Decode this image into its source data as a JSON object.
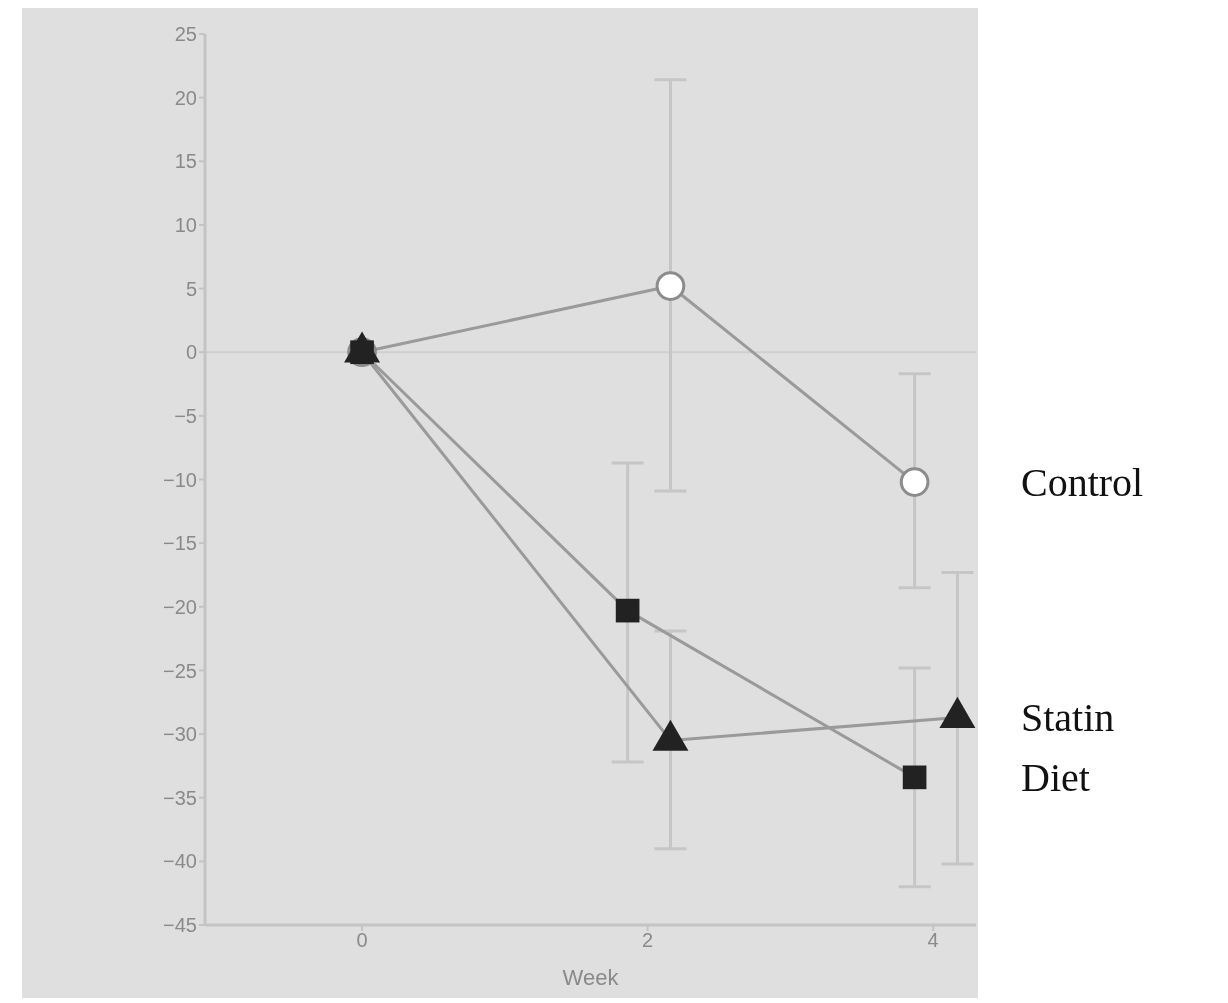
{
  "chart_data": {
    "type": "line",
    "xlabel": "Week",
    "xlim": [
      -1.1,
      4.3
    ],
    "xticks": [
      0,
      2,
      4
    ],
    "ylim": [
      -45,
      25
    ],
    "yticks": [
      -45,
      -40,
      -35,
      -30,
      -25,
      -20,
      -15,
      -10,
      -5,
      0,
      5,
      10,
      15,
      20,
      25
    ],
    "grid": false,
    "legend": false,
    "ref_lines": [
      {
        "axis": "y",
        "value": 0,
        "color": "#cfcfcf"
      }
    ],
    "series": [
      {
        "name": "Control",
        "color": "#8c8c8c",
        "marker": "circle",
        "x": [
          0,
          2.16,
          3.87
        ],
        "values": [
          0,
          5.2,
          -10.2
        ],
        "errors": [
          null,
          [
            -10.9,
            21.4
          ],
          [
            -18.5,
            -1.7
          ]
        ]
      },
      {
        "name": "Statin",
        "color": "#222222",
        "marker": "triangle",
        "x": [
          0,
          2.16,
          4.17
        ],
        "values": [
          0,
          -30.5,
          -28.7
        ],
        "errors": [
          null,
          [
            -39.0,
            -21.9
          ],
          [
            -40.2,
            -17.3
          ]
        ]
      },
      {
        "name": "Diet",
        "color": "#222222",
        "marker": "square",
        "x": [
          0,
          1.86,
          3.87
        ],
        "values": [
          0,
          -20.3,
          -33.4
        ],
        "errors": [
          null,
          [
            -32.2,
            -8.7
          ],
          [
            -42.0,
            -24.8
          ]
        ]
      }
    ]
  }
}
